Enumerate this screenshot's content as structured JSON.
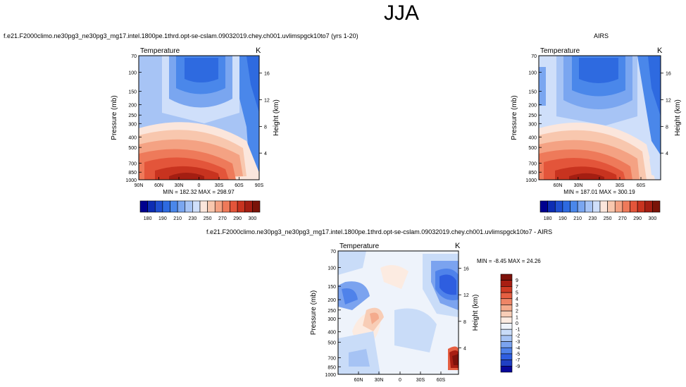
{
  "page": {
    "title": "JJA",
    "top_left_title": "f.e21.F2000climo.ne30pg3_ne30pg3_mg17.intel.1800pe.1thrd.opt-se-cslam.09032019.chey.ch001.uvlimspgck10to7 (yrs 1-20)",
    "top_right_title": "AIRS",
    "bottom_title": "f.e21.F2000climo.ne30pg3_ne30pg3_mg17.intel.1800pe.1thrd.opt-se-cslam.09032019.chey.ch001.uvlimspgck10to7 - AIRS"
  },
  "colors": {
    "temp_scale": [
      "#00008f",
      "#0d2db4",
      "#1f4fd0",
      "#2e6ae0",
      "#4a87ea",
      "#7aa6f0",
      "#a7c4f5",
      "#cfdffa",
      "#fbe6dc",
      "#f8c7ae",
      "#f4a283",
      "#ee7a5a",
      "#e3553a",
      "#c8331f",
      "#a41e12",
      "#7a1408"
    ],
    "diff_scale": [
      "#07079a",
      "#1f3fc4",
      "#2e5ee0",
      "#4f82ea",
      "#7ba3ef",
      "#a6c3f4",
      "#c9dcf8",
      "#eef3fb",
      "#fcebe1",
      "#f8cdb6",
      "#f4ab8d",
      "#ee8566",
      "#e55f42",
      "#cf3b24",
      "#a81e12",
      "#7e120b"
    ]
  },
  "chart_data": [
    {
      "type": "heatmap",
      "panel": "model",
      "title": "Temperature",
      "units": "K",
      "ylabel": "Pressure (mb)",
      "ylabel_right": "Height (km)",
      "y_ticks": [
        "70",
        "100",
        "150",
        "200",
        "250",
        "300",
        "400",
        "500",
        "700",
        "850",
        "1000"
      ],
      "y_right_ticks": [
        "16",
        "12",
        "8",
        "4"
      ],
      "x_ticks": [
        "90N",
        "60N",
        "30N",
        "0",
        "30S",
        "60S",
        "90S"
      ],
      "minmax": "MIN = 182.32   MAX = 298.97",
      "colorbar_labels": [
        "180",
        "190",
        "210",
        "230",
        "250",
        "270",
        "290",
        "300"
      ]
    },
    {
      "type": "heatmap",
      "panel": "obs",
      "title": "Temperature",
      "units": "K",
      "ylabel": "Pressure (mb)",
      "ylabel_right": "Height (km)",
      "y_ticks": [
        "70",
        "100",
        "150",
        "200",
        "250",
        "300",
        "400",
        "500",
        "700",
        "850",
        "1000"
      ],
      "y_right_ticks": [
        "16",
        "12",
        "8",
        "4"
      ],
      "x_ticks": [
        "60N",
        "30N",
        "0",
        "30S",
        "60S"
      ],
      "minmax": "MIN = 187.01   MAX = 300.19",
      "colorbar_labels": [
        "180",
        "190",
        "210",
        "230",
        "250",
        "270",
        "290",
        "300"
      ]
    },
    {
      "type": "heatmap",
      "panel": "difference",
      "title": "Temperature",
      "units": "K",
      "ylabel": "Pressure (mb)",
      "ylabel_right": "Height (km)",
      "y_ticks": [
        "70",
        "100",
        "150",
        "200",
        "250",
        "300",
        "400",
        "500",
        "700",
        "850",
        "1000"
      ],
      "y_right_ticks": [
        "16",
        "12",
        "8",
        "4"
      ],
      "x_ticks": [
        "60N",
        "30N",
        "0",
        "30S",
        "60S"
      ],
      "minmax": "MIN = -8.45   MAX = 24.26",
      "colorbar_labels": [
        "9",
        "7",
        "5",
        "4",
        "3",
        "2",
        "1",
        "0",
        "-1",
        "-2",
        "-3",
        "-4",
        "-5",
        "-7",
        "-9"
      ]
    }
  ]
}
